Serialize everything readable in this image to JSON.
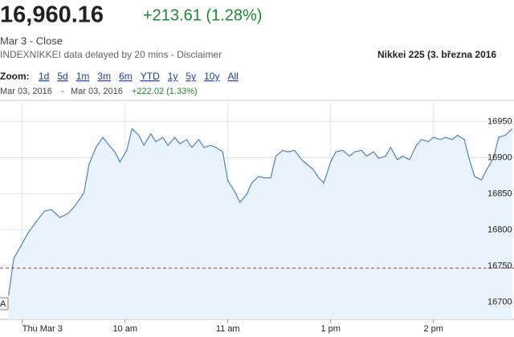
{
  "header": {
    "price": "16,960.16",
    "change": "+213.61 (1.28%)",
    "status": "Mar 3 - Close",
    "source": "INDEXNIKKEI data delayed by 20 mins - Disclaimer",
    "title": "Nikkei 225 (3. března 2016"
  },
  "zoom": {
    "label": "Zoom:",
    "options": [
      "1d",
      "5d",
      "1m",
      "3m",
      "6m",
      "YTD",
      "1y",
      "5y",
      "10y",
      "All"
    ]
  },
  "range": {
    "from": "Mar 03, 2016",
    "separator": "-",
    "to": "Mar 03, 2016",
    "change": "+222.02 (1.33%)"
  },
  "chart_data": {
    "type": "line",
    "x": [
      -8,
      -5,
      -1,
      3,
      8,
      13,
      17,
      22,
      27,
      31,
      36,
      39,
      43,
      47,
      50,
      54,
      57,
      61,
      64,
      68,
      71,
      75,
      78,
      82,
      85,
      89,
      92,
      96,
      99,
      103,
      106,
      110,
      113,
      117,
      120,
      124,
      127,
      131,
      134,
      138,
      141,
      145,
      148,
      152,
      155,
      159,
      163,
      166,
      170,
      173,
      176,
      180,
      183,
      187,
      191,
      194,
      198,
      201,
      205,
      208,
      212,
      215,
      219,
      222,
      226,
      230,
      233,
      237,
      240,
      244,
      247,
      251,
      254,
      258,
      261,
      264,
      268,
      271,
      275,
      278,
      282,
      286
    ],
    "series": [
      {
        "name": "Nikkei 225",
        "color": "#4f84bf",
        "fill": "#e9f3fc",
        "values": [
          16709,
          16760,
          16777,
          16794,
          16811,
          16826,
          16828,
          16817,
          16823,
          16834,
          16851,
          16891,
          16914,
          16928,
          16919,
          16908,
          16894,
          16910,
          16940,
          16931,
          16917,
          16933,
          16922,
          16928,
          16917,
          16928,
          16919,
          16925,
          16914,
          16925,
          16914,
          16917,
          16914,
          16908,
          16868,
          16853,
          16838,
          16849,
          16865,
          16874,
          16872,
          16872,
          16902,
          16910,
          16908,
          16910,
          16897,
          16891,
          16883,
          16872,
          16865,
          16894,
          16908,
          16910,
          16902,
          16908,
          16910,
          16902,
          16908,
          16899,
          16902,
          16914,
          16897,
          16902,
          16897,
          16917,
          16925,
          16922,
          16928,
          16925,
          16928,
          16925,
          16931,
          16925,
          16897,
          16874,
          16869,
          16883,
          16899,
          16928,
          16931,
          16940
        ]
      }
    ],
    "reference_line": {
      "value": 16747,
      "color": "#a0443c"
    },
    "annotation": "A",
    "xlim": [
      -13,
      287
    ],
    "xticks": [
      {
        "value": 0,
        "label": "Thu Mar 3"
      },
      {
        "value": 60,
        "label": "10 am"
      },
      {
        "value": 120,
        "label": "11 am"
      },
      {
        "value": 180,
        "label": "1 pm"
      },
      {
        "value": 240,
        "label": "2 pm"
      }
    ],
    "ylim": [
      16676,
      16976
    ],
    "yticks": [
      16700,
      16750,
      16800,
      16850,
      16900,
      16950
    ],
    "grid": true
  }
}
